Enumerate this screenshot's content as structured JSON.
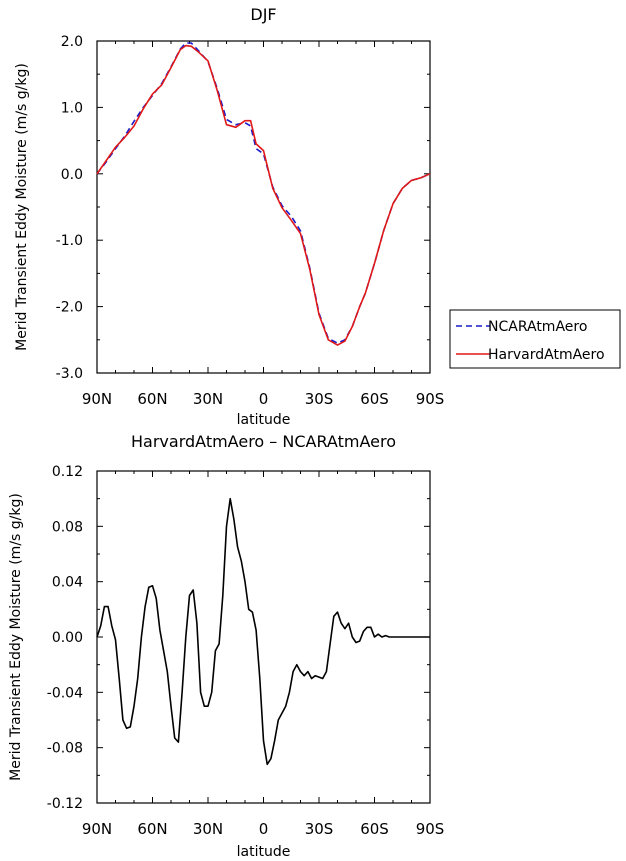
{
  "chart_data": [
    {
      "type": "line",
      "title": "DJF",
      "xlabel": "latitude",
      "ylabel": "Merid Transient Eddy Moisture (m/s g/kg)",
      "xlim": [
        90,
        -90
      ],
      "ylim": [
        -3.0,
        2.0
      ],
      "x_ticks": [
        90,
        60,
        30,
        0,
        -30,
        -60,
        -90
      ],
      "x_tick_labels": [
        "90N",
        "60N",
        "30N",
        "0",
        "30S",
        "60S",
        "90S"
      ],
      "y_ticks": [
        2.0,
        1.0,
        0.0,
        -1.0,
        -2.0,
        -3.0
      ],
      "y_tick_labels": [
        "2.0",
        "1.0",
        "0.0",
        "-1.0",
        "-2.0",
        "-3.0"
      ],
      "legend_position": "outside-right",
      "series": [
        {
          "name": "NCARAtmAero",
          "color": "#1a1acc",
          "dash": "dashed",
          "x": [
            90,
            85,
            80,
            75,
            70,
            65,
            60,
            55,
            50,
            45,
            42,
            39,
            35,
            30,
            25,
            20,
            15,
            10,
            7,
            4,
            0,
            -5,
            -10,
            -15,
            -20,
            -25,
            -30,
            -35,
            -40,
            -44,
            -48,
            -52,
            -55,
            -60,
            -65,
            -70,
            -75,
            -80,
            -85,
            -90
          ],
          "y": [
            0.0,
            0.18,
            0.38,
            0.57,
            0.79,
            1.0,
            1.18,
            1.36,
            1.61,
            1.88,
            1.97,
            1.97,
            1.85,
            1.69,
            1.28,
            0.82,
            0.74,
            0.77,
            0.72,
            0.38,
            0.3,
            -0.2,
            -0.48,
            -0.64,
            -0.86,
            -1.42,
            -2.1,
            -2.48,
            -2.55,
            -2.5,
            -2.3,
            -2.0,
            -1.8,
            -1.35,
            -0.85,
            -0.45,
            -0.22,
            -0.1,
            -0.06,
            0.0
          ]
        },
        {
          "name": "HarvardAtmAero",
          "color": "#e01818",
          "dash": "solid",
          "x": [
            90,
            85,
            80,
            75,
            70,
            65,
            60,
            55,
            50,
            45,
            42,
            39,
            35,
            30,
            25,
            20,
            15,
            10,
            7,
            4,
            0,
            -5,
            -10,
            -15,
            -20,
            -25,
            -30,
            -35,
            -40,
            -44,
            -48,
            -52,
            -55,
            -60,
            -65,
            -70,
            -75,
            -80,
            -85,
            -90
          ],
          "y": [
            0.0,
            0.2,
            0.4,
            0.55,
            0.72,
            0.98,
            1.2,
            1.34,
            1.6,
            1.87,
            1.93,
            1.92,
            1.83,
            1.7,
            1.25,
            0.74,
            0.7,
            0.8,
            0.8,
            0.45,
            0.35,
            -0.22,
            -0.51,
            -0.7,
            -0.9,
            -1.44,
            -2.12,
            -2.5,
            -2.58,
            -2.52,
            -2.3,
            -2.0,
            -1.8,
            -1.35,
            -0.85,
            -0.45,
            -0.22,
            -0.1,
            -0.06,
            0.0
          ]
        }
      ]
    },
    {
      "type": "line",
      "title": "HarvardAtmAero – NCARAtmAero",
      "xlabel": "latitude",
      "ylabel": "Merid Transient Eddy Moisture (m/s g/kg)",
      "xlim": [
        90,
        -90
      ],
      "ylim": [
        -0.12,
        0.12
      ],
      "x_ticks": [
        90,
        60,
        30,
        0,
        -30,
        -60,
        -90
      ],
      "x_tick_labels": [
        "90N",
        "60N",
        "30N",
        "0",
        "30S",
        "60S",
        "90S"
      ],
      "y_ticks": [
        0.12,
        0.08,
        0.04,
        0.0,
        -0.04,
        -0.08,
        -0.12
      ],
      "y_tick_labels": [
        "0.12",
        "0.08",
        "0.04",
        "0.00",
        "-0.04",
        "-0.08",
        "-0.12"
      ],
      "series": [
        {
          "color": "#000000",
          "dash": "solid",
          "x": [
            90,
            88,
            86,
            84,
            82,
            80,
            78,
            76,
            74,
            72,
            70,
            68,
            66,
            64,
            62,
            60,
            58,
            56,
            54,
            52,
            50,
            48,
            46,
            44,
            42,
            40,
            38,
            36,
            34,
            32,
            30,
            28,
            26,
            24,
            22,
            20,
            18,
            16,
            14,
            12,
            10,
            8,
            6,
            4,
            2,
            0,
            -2,
            -4,
            -6,
            -8,
            -10,
            -12,
            -14,
            -16,
            -18,
            -20,
            -22,
            -24,
            -26,
            -28,
            -30,
            -32,
            -34,
            -36,
            -38,
            -40,
            -42,
            -44,
            -46,
            -48,
            -50,
            -52,
            -54,
            -56,
            -58,
            -60,
            -62,
            -64,
            -66,
            -68,
            -70,
            -72,
            -74,
            -76,
            -78,
            -80,
            -82,
            -84,
            -86,
            -88,
            -90
          ],
          "y": [
            0.0,
            0.008,
            0.022,
            0.022,
            0.008,
            -0.002,
            -0.03,
            -0.06,
            -0.066,
            -0.065,
            -0.05,
            -0.03,
            0.0,
            0.022,
            0.036,
            0.037,
            0.028,
            0.005,
            -0.01,
            -0.025,
            -0.05,
            -0.073,
            -0.076,
            -0.04,
            0.0,
            0.03,
            0.034,
            0.01,
            -0.04,
            -0.05,
            -0.05,
            -0.04,
            -0.01,
            -0.005,
            0.03,
            0.08,
            0.1,
            0.085,
            0.065,
            0.055,
            0.04,
            0.02,
            0.018,
            0.005,
            -0.03,
            -0.075,
            -0.092,
            -0.088,
            -0.075,
            -0.06,
            -0.055,
            -0.05,
            -0.04,
            -0.025,
            -0.02,
            -0.025,
            -0.028,
            -0.025,
            -0.03,
            -0.028,
            -0.029,
            -0.03,
            -0.025,
            -0.005,
            0.015,
            0.018,
            0.01,
            0.006,
            0.01,
            0.0,
            -0.004,
            -0.003,
            0.004,
            0.007,
            0.007,
            0.0,
            0.002,
            0.0,
            0.001,
            0.0,
            0.0,
            0.0,
            0.0,
            0.0,
            0.0,
            0.0,
            0.0,
            0.0,
            0.0,
            0.0,
            0.0
          ]
        }
      ]
    }
  ]
}
